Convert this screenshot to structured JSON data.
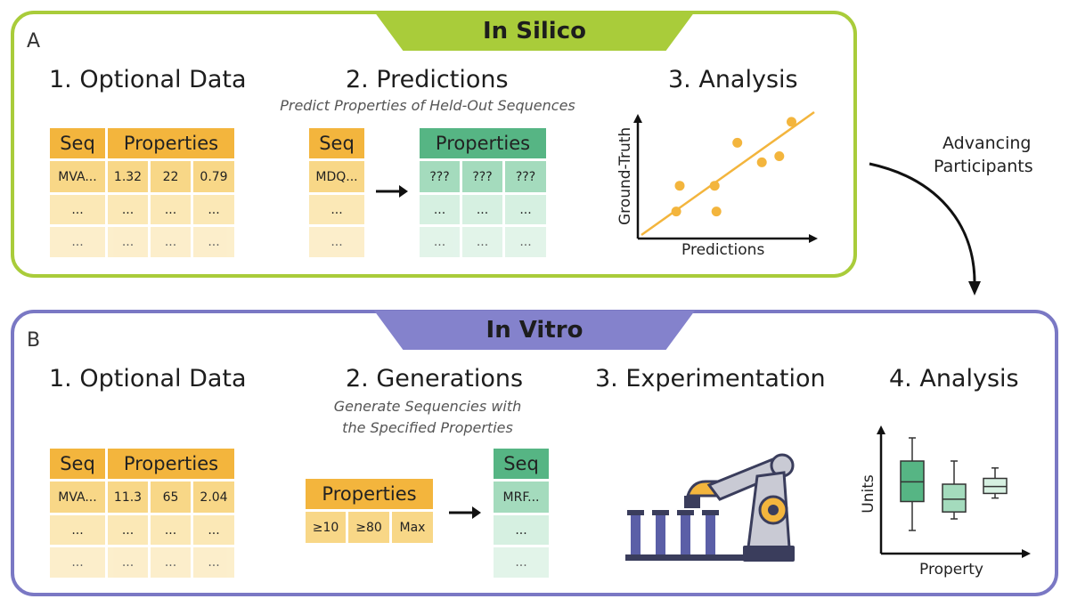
{
  "panelA": {
    "letter": "A",
    "banner": "In Silico",
    "step1": {
      "title": "1. Optional Data",
      "table": {
        "headers": [
          "Seq",
          "Properties"
        ],
        "row1": [
          "MVA...",
          "1.32",
          "22",
          "0.79"
        ],
        "row2": [
          "...",
          "...",
          "...",
          "..."
        ],
        "row3": [
          "...",
          "...",
          "...",
          "..."
        ]
      }
    },
    "step2": {
      "title": "2. Predictions",
      "subtitle": "Predict Properties of Held-Out Sequences",
      "seq_table": {
        "header": "Seq",
        "row1": "MDQ...",
        "row2": "...",
        "row3": "..."
      },
      "prop_table": {
        "header": "Properties",
        "row1": [
          "???",
          "???",
          "???"
        ],
        "row2": [
          "...",
          "...",
          "..."
        ],
        "row3": [
          "...",
          "...",
          "..."
        ]
      }
    },
    "step3": {
      "title": "3. Analysis",
      "ylabel": "Ground-Truth",
      "xlabel": "Predictions"
    }
  },
  "connector": {
    "label_line1": "Advancing",
    "label_line2": "Participants"
  },
  "panelB": {
    "letter": "B",
    "banner": "In Vitro",
    "step1": {
      "title": "1. Optional Data",
      "table": {
        "headers": [
          "Seq",
          "Properties"
        ],
        "row1": [
          "MVA...",
          "11.3",
          "65",
          "2.04"
        ],
        "row2": [
          "...",
          "...",
          "...",
          "..."
        ],
        "row3": [
          "...",
          "...",
          "...",
          "..."
        ]
      }
    },
    "step2": {
      "title": "2. Generations",
      "subtitle_line1": "Generate Sequencies with",
      "subtitle_line2": "the Specified Properties",
      "prop_table": {
        "header": "Properties",
        "row1": [
          "≥10",
          "≥80",
          "Max"
        ]
      },
      "seq_table": {
        "header": "Seq",
        "row1": "MRF...",
        "row2": "...",
        "row3": "..."
      }
    },
    "step3": {
      "title": "3. Experimentation"
    },
    "step4": {
      "title": "4. Analysis",
      "ylabel": "Units",
      "xlabel": "Property"
    }
  },
  "colors": {
    "in_silico": "#a9cc3a",
    "in_vitro": "#7a78c4",
    "orange": "#f3b53d",
    "green": "#56b584"
  },
  "icons": [
    "robot-arm-icon",
    "scatter-plot-icon",
    "box-plot-icon"
  ],
  "chart_data": [
    {
      "type": "scatter",
      "title": "3. Analysis",
      "xlabel": "Predictions",
      "ylabel": "Ground-Truth",
      "x": [
        0.22,
        0.24,
        0.44,
        0.45,
        0.57,
        0.71,
        0.81,
        0.88
      ],
      "y": [
        0.22,
        0.43,
        0.43,
        0.22,
        0.78,
        0.62,
        0.67,
        0.95
      ],
      "trendline": true,
      "grid": false
    },
    {
      "type": "box",
      "title": "4. Analysis",
      "xlabel": "Property",
      "ylabel": "Units",
      "boxes": [
        {
          "min": 0.2,
          "q1": 0.45,
          "median": 0.62,
          "q3": 0.8,
          "max": 1.0
        },
        {
          "min": 0.3,
          "q1": 0.36,
          "median": 0.47,
          "q3": 0.6,
          "max": 0.8
        },
        {
          "min": 0.48,
          "q1": 0.52,
          "median": 0.58,
          "q3": 0.65,
          "max": 0.74
        }
      ]
    }
  ]
}
